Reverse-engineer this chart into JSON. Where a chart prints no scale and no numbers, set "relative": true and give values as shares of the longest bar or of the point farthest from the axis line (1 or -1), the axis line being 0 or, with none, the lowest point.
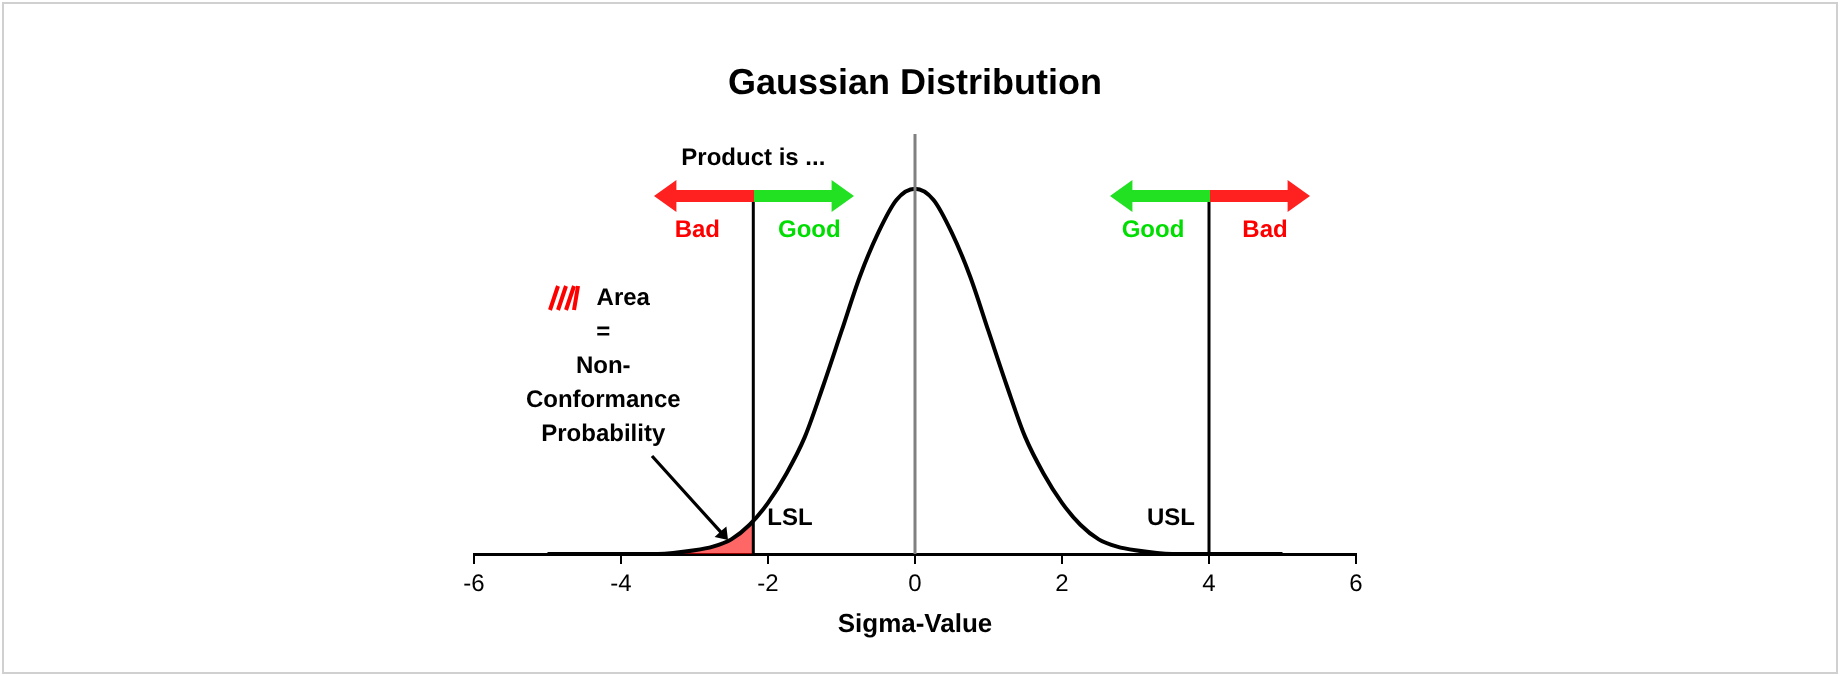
{
  "chart_data": {
    "type": "line",
    "title": "Gaussian Distribution",
    "xlabel": "Sigma-Value",
    "relative": true,
    "marker": "none",
    "xlim": [
      -6,
      6
    ],
    "xticks": [
      -6,
      -4,
      -2,
      0,
      2,
      4,
      6
    ],
    "series": [
      {
        "color": "#000000",
        "x": [
          -5,
          -4.5,
          -4,
          -3.5,
          -3,
          -2.75,
          -2.5,
          -2.25,
          -2,
          -1.75,
          -1.5,
          -1.25,
          -1,
          -0.75,
          -0.5,
          -0.25,
          0,
          0.25,
          0.5,
          0.75,
          1,
          1.25,
          1.5,
          1.75,
          2,
          2.25,
          2.5,
          2.75,
          3,
          3.5,
          4,
          4.5,
          5
        ],
        "values": [
          0,
          0,
          0,
          0,
          0.01,
          0.02,
          0.04,
          0.08,
          0.14,
          0.22,
          0.32,
          0.46,
          0.61,
          0.76,
          0.88,
          0.97,
          1,
          0.97,
          0.88,
          0.76,
          0.61,
          0.46,
          0.32,
          0.22,
          0.14,
          0.08,
          0.04,
          0.02,
          0.01,
          0,
          0,
          0,
          0
        ]
      },
      {
        "type": "area",
        "color": "#ff0000",
        "x": [
          -3.2,
          -3,
          -2.75,
          -2.5,
          -2.2
        ],
        "values": [
          0.01,
          0.01,
          0.02,
          0.04,
          0.09
        ]
      }
    ],
    "ref_lines": [
      {
        "axis": "x",
        "value": 0,
        "color": "#808080"
      },
      {
        "axis": "x",
        "value": -2.2,
        "label": "LSL",
        "color": "#000000"
      },
      {
        "axis": "x",
        "value": 4,
        "label": "USL",
        "color": "#000000"
      }
    ],
    "annotations": [
      "Product is ...",
      "Bad",
      "Good",
      "Good",
      "Bad",
      "Area = Non-Conformance Probability"
    ]
  }
}
